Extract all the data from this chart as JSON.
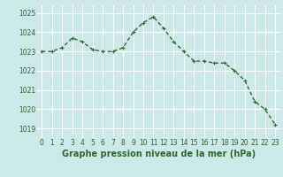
{
  "x": [
    0,
    1,
    2,
    3,
    4,
    5,
    6,
    7,
    8,
    9,
    10,
    11,
    12,
    13,
    14,
    15,
    16,
    17,
    18,
    19,
    20,
    21,
    22,
    23
  ],
  "y": [
    1023.0,
    1023.0,
    1023.2,
    1023.7,
    1023.5,
    1023.1,
    1023.0,
    1023.0,
    1023.2,
    1024.0,
    1024.5,
    1024.8,
    1024.2,
    1023.5,
    1023.0,
    1022.5,
    1022.5,
    1022.4,
    1022.4,
    1022.0,
    1021.5,
    1020.4,
    1020.0,
    1019.2
  ],
  "line_color": "#2d6a2d",
  "marker_color": "#2d6a2d",
  "bg_color": "#cce8e8",
  "grid_color": "#ffffff",
  "xlabel": "Graphe pression niveau de la mer (hPa)",
  "ylim": [
    1018.5,
    1025.4
  ],
  "yticks": [
    1019,
    1020,
    1021,
    1022,
    1023,
    1024,
    1025
  ],
  "xticks": [
    0,
    1,
    2,
    3,
    4,
    5,
    6,
    7,
    8,
    9,
    10,
    11,
    12,
    13,
    14,
    15,
    16,
    17,
    18,
    19,
    20,
    21,
    22,
    23
  ],
  "tick_fontsize": 5.5,
  "label_fontsize": 7.0,
  "line_width": 1.0,
  "marker_size": 2.5
}
